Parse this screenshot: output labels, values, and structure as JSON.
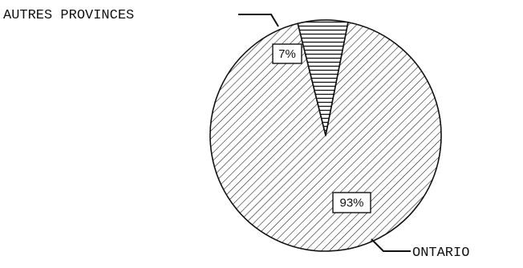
{
  "chart_data": {
    "type": "pie",
    "title": "",
    "slices": [
      {
        "name": "ONTARIO",
        "value": 93,
        "label": "93%",
        "pattern": "diagonal-hatch"
      },
      {
        "name": "AUTRES PROVINCES",
        "value": 7,
        "label": "7%",
        "pattern": "horizontal-hatch"
      }
    ],
    "legend": "none",
    "grid": false
  },
  "colors": {
    "ink": "#111111",
    "background": "#ffffff"
  }
}
